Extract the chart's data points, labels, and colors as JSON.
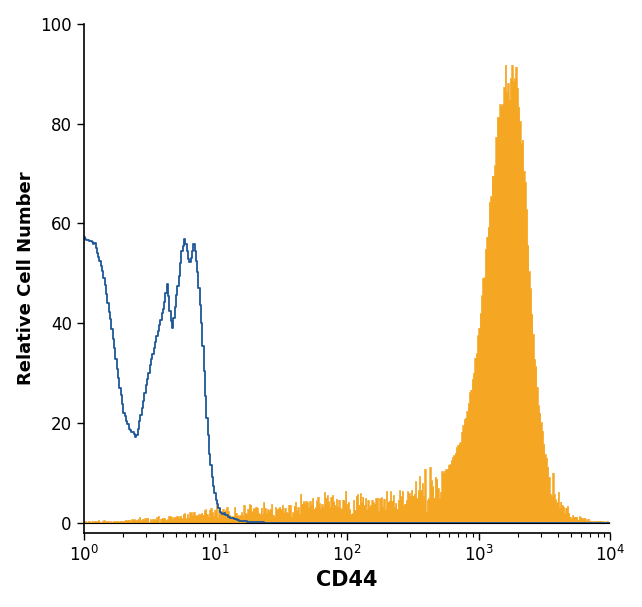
{
  "title": "",
  "xlabel": "CD44",
  "ylabel": "Relative Cell Number",
  "xlim": [
    1,
    10000
  ],
  "ylim": [
    -2,
    100
  ],
  "yticks": [
    0,
    20,
    40,
    60,
    80,
    100
  ],
  "blue_color": "#1E5799",
  "orange_color": "#F5A623",
  "orange_fill": "#F5A623",
  "background_color": "#ffffff",
  "xlabel_fontsize": 15,
  "ylabel_fontsize": 13,
  "tick_fontsize": 12,
  "blue_x": [
    1.0,
    1.2,
    1.4,
    1.6,
    1.8,
    2.0,
    2.2,
    2.5,
    2.8,
    3.2,
    3.6,
    4.0,
    4.3,
    4.5,
    4.7,
    5.0,
    5.3,
    5.5,
    5.8,
    6.0,
    6.3,
    6.5,
    6.8,
    7.0,
    7.3,
    7.5,
    7.8,
    8.0,
    8.3,
    8.5,
    8.8,
    9.0,
    9.5,
    10.0,
    10.5,
    11.0,
    12.0,
    13.0,
    14.0,
    15.0,
    17.0,
    19.0,
    22.0,
    25.0,
    30.0,
    35.0,
    40.0,
    50.0,
    60.0,
    70.0,
    80.0,
    100.0,
    150.0,
    200.0,
    300.0,
    500.0,
    1000.0,
    2000.0,
    5000.0,
    10000.0
  ],
  "blue_y": [
    57,
    56,
    50,
    40,
    30,
    22,
    19,
    17,
    24,
    32,
    38,
    43,
    48,
    42,
    39,
    45,
    50,
    54,
    57,
    55,
    52,
    53,
    56,
    54,
    50,
    46,
    40,
    35,
    27,
    22,
    17,
    13,
    8,
    5,
    3,
    2,
    1.5,
    1.0,
    0.8,
    0.5,
    0.3,
    0.2,
    0.1,
    0.05,
    0.0,
    0.0,
    0.0,
    0.0,
    0.0,
    0.0,
    0.0,
    0.0,
    0.0,
    0.0,
    0.0,
    0.0,
    0.0,
    0.0,
    0.0,
    0.0
  ],
  "orange_x": [
    1.0,
    1.5,
    2.0,
    3.0,
    4.0,
    5.0,
    6.0,
    7.0,
    8.0,
    9.0,
    10.0,
    12.0,
    14.0,
    16.0,
    18.0,
    20.0,
    25.0,
    30.0,
    40.0,
    50.0,
    60.0,
    70.0,
    80.0,
    100.0,
    120.0,
    150.0,
    200.0,
    250.0,
    300.0,
    400.0,
    500.0,
    600.0,
    700.0,
    800.0,
    900.0,
    1000.0,
    1100.0,
    1200.0,
    1300.0,
    1400.0,
    1500.0,
    1600.0,
    1700.0,
    1800.0,
    1900.0,
    2000.0,
    2100.0,
    2200.0,
    2300.0,
    2400.0,
    2500.0,
    2600.0,
    2700.0,
    2800.0,
    3000.0,
    3200.0,
    3500.0,
    4000.0,
    5000.0,
    7000.0,
    10000.0
  ],
  "orange_y": [
    0.3,
    0.4,
    0.5,
    0.8,
    1.0,
    1.2,
    1.5,
    1.8,
    2.0,
    2.2,
    2.5,
    2.3,
    2.1,
    2.4,
    2.6,
    2.8,
    3.0,
    2.8,
    3.2,
    3.5,
    3.8,
    4.0,
    3.6,
    4.2,
    4.0,
    3.8,
    4.5,
    5.0,
    5.5,
    7.0,
    9.0,
    12.0,
    16.0,
    22.0,
    30.0,
    40.0,
    52.0,
    63.0,
    72.0,
    80.0,
    86.0,
    90.0,
    88.0,
    91.0,
    89.0,
    85.0,
    78.0,
    70.0,
    60.0,
    50.0,
    42.0,
    35.0,
    30.0,
    25.0,
    18.0,
    13.0,
    8.0,
    4.0,
    1.5,
    0.5,
    0.2
  ]
}
